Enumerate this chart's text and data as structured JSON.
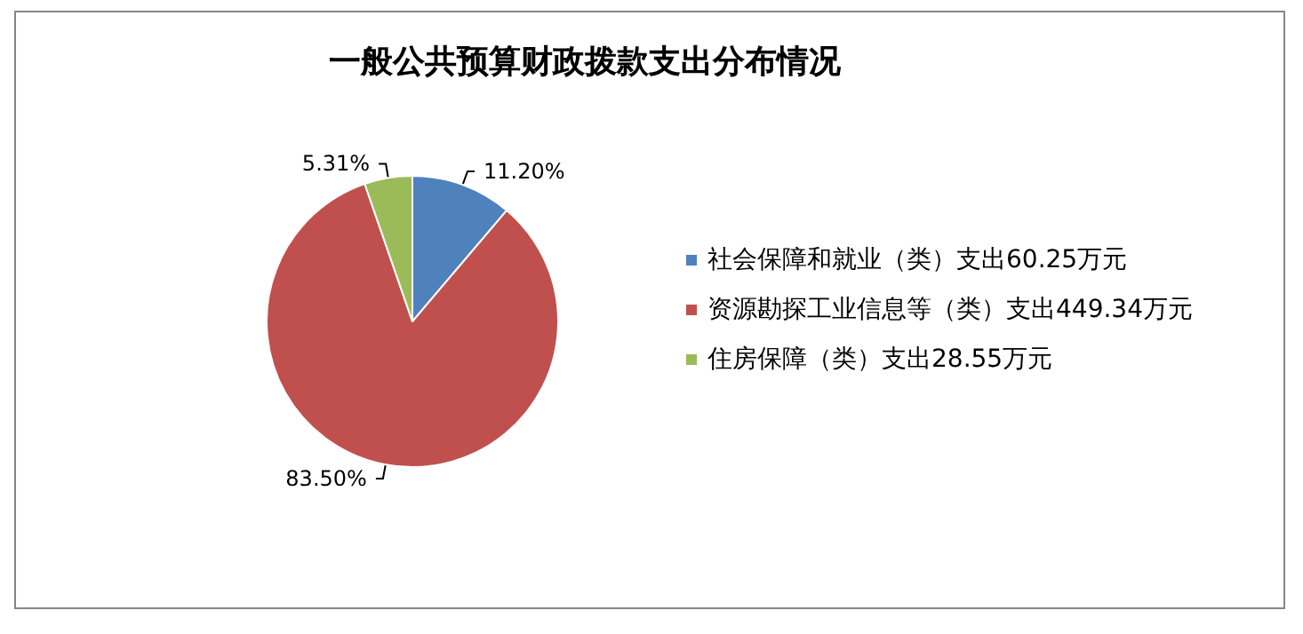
{
  "chart_data": {
    "type": "pie",
    "title": "一般公共预算财政拨款支出分布情况",
    "categories": [
      "社会保障和就业（类）支出60.25万元",
      "资源勘探工业信息等（类）支出449.34万元",
      "住房保障（类）支出28.55万元"
    ],
    "values": [
      11.2,
      83.5,
      5.31
    ],
    "colors": [
      "#4f81bd",
      "#c0504d",
      "#9bbb59"
    ],
    "value_labels": [
      "11.20%",
      "83.50%",
      "5.31%"
    ],
    "legend": "right"
  }
}
